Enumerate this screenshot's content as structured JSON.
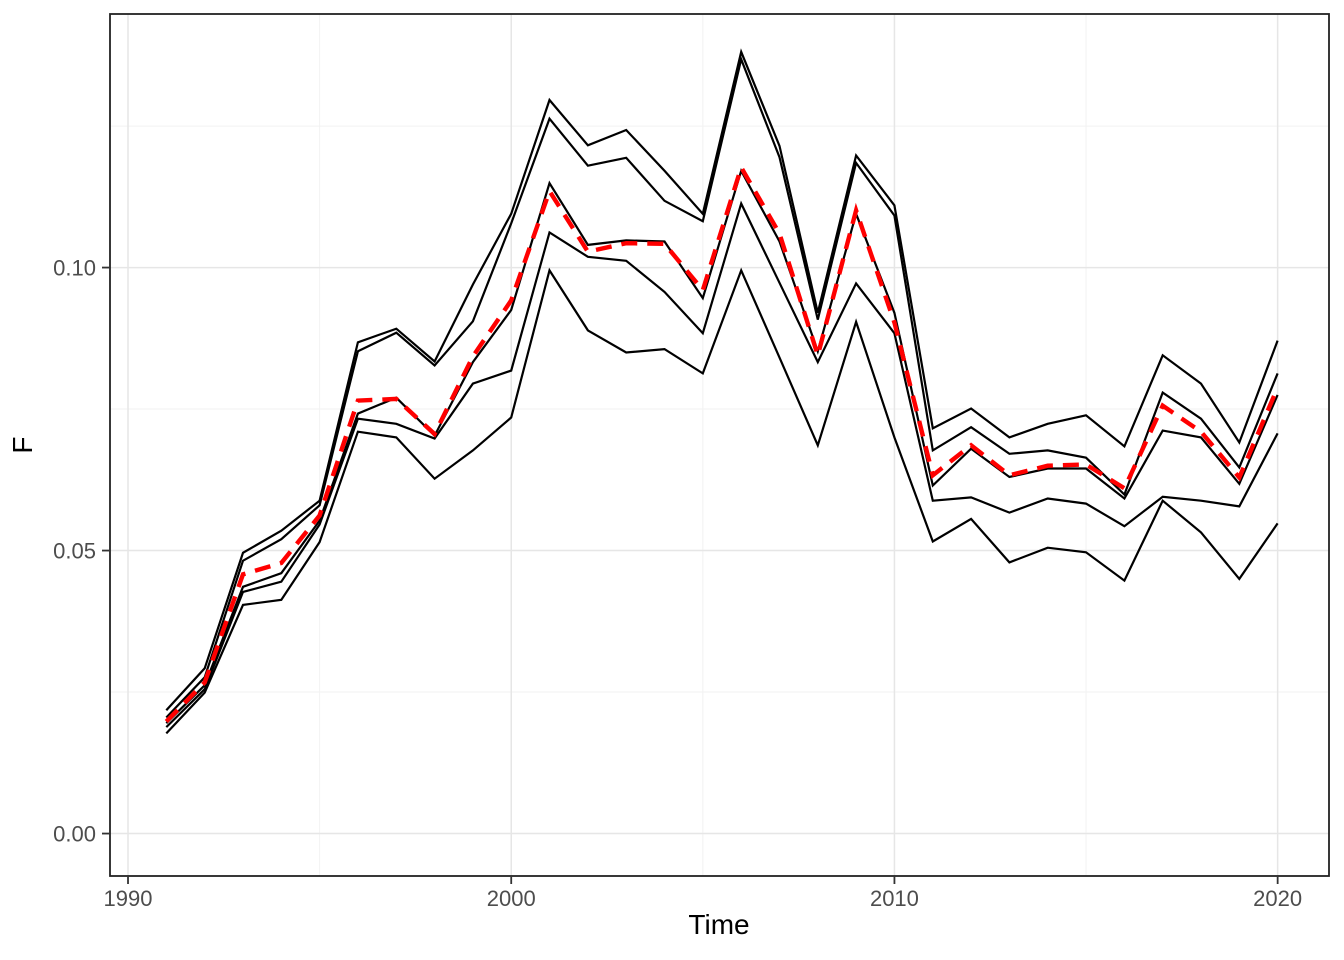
{
  "figure": {
    "background": "#FFFFFF"
  },
  "chart_data": {
    "type": "line",
    "title": "",
    "xlabel": "Time",
    "ylabel": "F",
    "grid": "major+minor",
    "legend": "none",
    "panel_border": true,
    "x_axis": {
      "ticks": [
        1990,
        2000,
        2010,
        2020
      ],
      "labels": [
        "1990",
        "2000",
        "2010",
        "2020"
      ],
      "minor": [
        1995,
        2005,
        2015
      ],
      "lim": [
        1989.53,
        2021.34
      ]
    },
    "y_axis": {
      "ticks": [
        0.0,
        0.05,
        0.1
      ],
      "labels": [
        "0.00",
        "0.05",
        "0.10"
      ],
      "minor": [
        0.025,
        0.075,
        0.125
      ],
      "lim": [
        -0.0075,
        0.1448
      ]
    },
    "x": [
      1991,
      1992,
      1993,
      1994,
      1995,
      1996,
      1997,
      1998,
      1999,
      2000,
      2001,
      2002,
      2003,
      2004,
      2005,
      2006,
      2007,
      2008,
      2009,
      2010,
      2011,
      2012,
      2013,
      2014,
      2015,
      2016,
      2017,
      2018,
      2019,
      2020
    ],
    "series": [
      {
        "name": "black-line-1-upper",
        "color": "#000000",
        "linetype": "solid",
        "width": 2.2,
        "values": [
          0.0218,
          0.0292,
          0.0496,
          0.0535,
          0.0588,
          0.0868,
          0.0892,
          0.0834,
          0.097,
          0.1095,
          0.1296,
          0.1216,
          0.1243,
          0.1171,
          0.1095,
          0.1381,
          0.1215,
          0.092,
          0.1198,
          0.111,
          0.0716,
          0.0751,
          0.07,
          0.0724,
          0.0739,
          0.0684,
          0.0845,
          0.0795,
          0.0691,
          0.0871
        ]
      },
      {
        "name": "black-line-2",
        "color": "#000000",
        "linetype": "solid",
        "width": 2.2,
        "values": [
          0.0205,
          0.0276,
          0.0482,
          0.052,
          0.058,
          0.0852,
          0.0885,
          0.0827,
          0.0905,
          0.1078,
          0.1263,
          0.118,
          0.1194,
          0.1118,
          0.1082,
          0.1368,
          0.1195,
          0.0908,
          0.1185,
          0.1092,
          0.0677,
          0.0718,
          0.0671,
          0.0677,
          0.0664,
          0.0599,
          0.0779,
          0.0733,
          0.0647,
          0.0813
        ]
      },
      {
        "name": "black-line-3",
        "color": "#000000",
        "linetype": "solid",
        "width": 2.2,
        "values": [
          0.0195,
          0.0262,
          0.0436,
          0.046,
          0.0553,
          0.0742,
          0.077,
          0.0703,
          0.0833,
          0.0925,
          0.1149,
          0.104,
          0.1048,
          0.1046,
          0.0946,
          0.1171,
          0.1046,
          0.0852,
          0.1095,
          0.092,
          0.0615,
          0.068,
          0.063,
          0.0645,
          0.0645,
          0.0592,
          0.0712,
          0.07,
          0.0618,
          0.0775
        ]
      },
      {
        "name": "black-line-4",
        "color": "#000000",
        "linetype": "solid",
        "width": 2.2,
        "values": [
          0.0188,
          0.0255,
          0.0427,
          0.0445,
          0.0546,
          0.0733,
          0.0724,
          0.0698,
          0.0795,
          0.0818,
          0.1062,
          0.1019,
          0.1012,
          0.0957,
          0.0884,
          0.1113,
          0.0973,
          0.0833,
          0.0972,
          0.0884,
          0.0588,
          0.0594,
          0.0567,
          0.0592,
          0.0583,
          0.0543,
          0.0595,
          0.0588,
          0.0578,
          0.0707
        ]
      },
      {
        "name": "black-line-5-lower",
        "color": "#000000",
        "linetype": "solid",
        "width": 2.2,
        "values": [
          0.0177,
          0.0249,
          0.0404,
          0.0413,
          0.0515,
          0.071,
          0.07,
          0.0627,
          0.0677,
          0.0735,
          0.0995,
          0.0889,
          0.085,
          0.0856,
          0.0813,
          0.0995,
          0.0841,
          0.0686,
          0.0904,
          0.07,
          0.0516,
          0.0556,
          0.0479,
          0.0505,
          0.0497,
          0.0447,
          0.0588,
          0.0532,
          0.045,
          0.0548
        ]
      },
      {
        "name": "red-dashed-central-line",
        "color": "#FF0000",
        "linetype": "dashed",
        "width": 4.4,
        "values": [
          0.0198,
          0.0267,
          0.0458,
          0.0478,
          0.0562,
          0.0765,
          0.0768,
          0.0706,
          0.0843,
          0.0942,
          0.1135,
          0.1028,
          0.1043,
          0.1042,
          0.096,
          0.1177,
          0.106,
          0.0845,
          0.1101,
          0.0903,
          0.0633,
          0.0686,
          0.0633,
          0.065,
          0.0652,
          0.061,
          0.0756,
          0.071,
          0.0629,
          0.0788
        ]
      }
    ]
  },
  "theme": {
    "panel_background": "#FFFFFF",
    "grid_major_color": "#E6E6E6",
    "grid_minor_color": "#F2F2F2",
    "panel_border_color": "#222222",
    "tick_color": "#333333",
    "tick_label_color": "#4D4D4D",
    "axis_title_color": "#000000",
    "dash_pattern": "16 10"
  }
}
